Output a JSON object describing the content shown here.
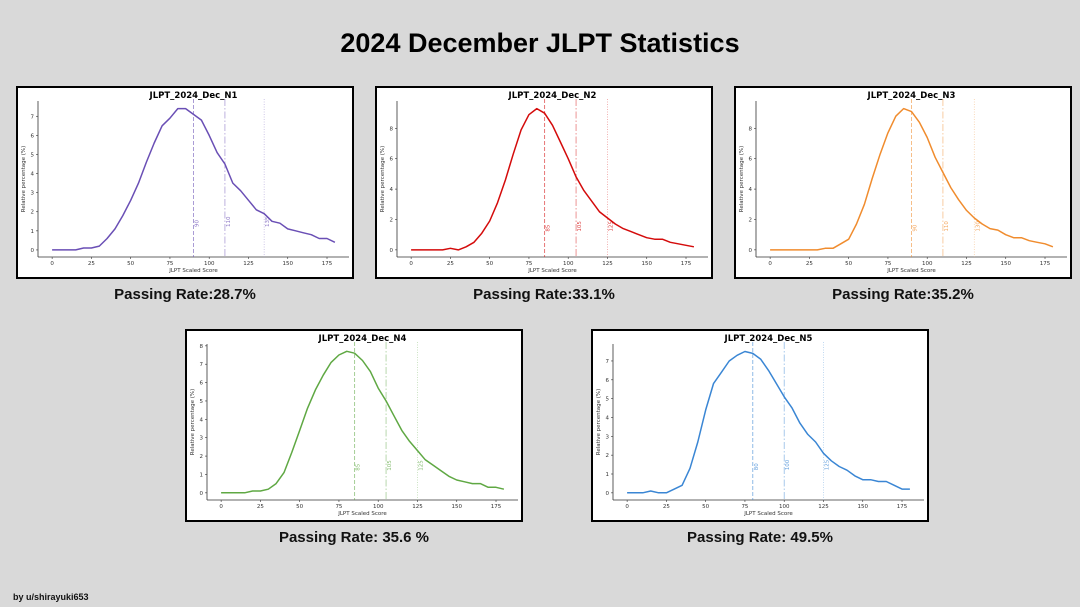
{
  "page_title": "2024 December JLPT Statistics",
  "credit": "by u/shirayuki653",
  "chart_data": [
    {
      "type": "line",
      "title": "JLPT_2024_Dec_N1",
      "xlabel": "JLPT Scaled Score",
      "ylabel": "Relative percentage (%)",
      "color": "#6a4fb5",
      "passing_rate": "Passing Rate:28.7%",
      "xlim": [
        -9,
        189
      ],
      "ylim": [
        -0.37,
        7.8
      ],
      "xticks": [
        0,
        25,
        50,
        75,
        100,
        125,
        150,
        175
      ],
      "yticks": [
        0,
        1,
        2,
        3,
        4,
        5,
        6,
        7
      ],
      "thresholds": [
        90,
        110,
        135
      ],
      "x": [
        0,
        5,
        10,
        15,
        20,
        25,
        30,
        35,
        40,
        45,
        50,
        55,
        60,
        65,
        70,
        75,
        80,
        85,
        90,
        95,
        100,
        105,
        110,
        115,
        120,
        125,
        130,
        135,
        140,
        145,
        150,
        155,
        160,
        165,
        170,
        175,
        180
      ],
      "y": [
        0,
        0,
        0,
        0,
        0.1,
        0.1,
        0.2,
        0.6,
        1.1,
        1.8,
        2.6,
        3.5,
        4.6,
        5.6,
        6.5,
        6.9,
        7.4,
        7.4,
        7.1,
        6.8,
        6.0,
        5.1,
        4.5,
        3.5,
        3.1,
        2.6,
        2.1,
        1.9,
        1.5,
        1.4,
        1.1,
        1.0,
        0.9,
        0.8,
        0.6,
        0.6,
        0.4
      ]
    },
    {
      "type": "line",
      "title": "JLPT_2024_Dec_N2",
      "xlabel": "JLPT Scaled Score",
      "ylabel": "Relative percentage (%)",
      "color": "#d40b0b",
      "passing_rate": "Passing Rate:33.1%",
      "xlim": [
        -9,
        189
      ],
      "ylim": [
        -0.47,
        9.8
      ],
      "xticks": [
        0,
        25,
        50,
        75,
        100,
        125,
        150,
        175
      ],
      "yticks": [
        0,
        2,
        4,
        6,
        8
      ],
      "thresholds": [
        85,
        105,
        125
      ],
      "x": [
        0,
        5,
        10,
        15,
        20,
        25,
        30,
        35,
        40,
        45,
        50,
        55,
        60,
        65,
        70,
        75,
        80,
        85,
        90,
        95,
        100,
        105,
        110,
        115,
        120,
        125,
        130,
        135,
        140,
        145,
        150,
        155,
        160,
        165,
        170,
        175,
        180
      ],
      "y": [
        0,
        0,
        0,
        0,
        0,
        0.1,
        0,
        0.2,
        0.5,
        1.1,
        1.9,
        3.1,
        4.6,
        6.3,
        7.9,
        8.9,
        9.3,
        9.0,
        8.2,
        7.1,
        6.0,
        4.8,
        3.9,
        3.2,
        2.5,
        2.1,
        1.7,
        1.4,
        1.2,
        1.0,
        0.8,
        0.7,
        0.7,
        0.5,
        0.4,
        0.3,
        0.2
      ]
    },
    {
      "type": "line",
      "title": "JLPT_2024_Dec_N3",
      "xlabel": "JLPT Scaled Score",
      "ylabel": "Relative percentage (%)",
      "color": "#f08c2e",
      "passing_rate": "Passing Rate:35.2%",
      "xlim": [
        -9,
        189
      ],
      "ylim": [
        -0.47,
        9.8
      ],
      "xticks": [
        0,
        25,
        50,
        75,
        100,
        125,
        150,
        175
      ],
      "yticks": [
        0,
        2,
        4,
        6,
        8
      ],
      "thresholds": [
        90,
        110,
        130
      ],
      "x": [
        0,
        5,
        10,
        15,
        20,
        25,
        30,
        35,
        40,
        45,
        50,
        55,
        60,
        65,
        70,
        75,
        80,
        85,
        90,
        95,
        100,
        105,
        110,
        115,
        120,
        125,
        130,
        135,
        140,
        145,
        150,
        155,
        160,
        165,
        170,
        175,
        180
      ],
      "y": [
        0,
        0,
        0,
        0,
        0,
        0,
        0,
        0.1,
        0.1,
        0.4,
        0.7,
        1.7,
        3.0,
        4.7,
        6.3,
        7.7,
        8.8,
        9.3,
        9.1,
        8.4,
        7.4,
        6.1,
        5.1,
        4.1,
        3.3,
        2.6,
        2.1,
        1.7,
        1.4,
        1.3,
        1.0,
        0.8,
        0.8,
        0.6,
        0.5,
        0.4,
        0.2
      ]
    },
    {
      "type": "line",
      "title": "JLPT_2024_Dec_N4",
      "xlabel": "JLPT Scaled Score",
      "ylabel": "Relative percentage (%)",
      "color": "#5fa843",
      "passing_rate": "Passing Rate: 35.6 %",
      "xlim": [
        -9,
        189
      ],
      "ylim": [
        -0.39,
        8.1
      ],
      "xticks": [
        0,
        25,
        50,
        75,
        100,
        125,
        150,
        175
      ],
      "yticks": [
        0,
        1,
        2,
        3,
        4,
        5,
        6,
        7,
        8
      ],
      "thresholds": [
        85,
        105,
        125
      ],
      "x": [
        0,
        5,
        10,
        15,
        20,
        25,
        30,
        35,
        40,
        45,
        50,
        55,
        60,
        65,
        70,
        75,
        80,
        85,
        90,
        95,
        100,
        105,
        110,
        115,
        120,
        125,
        130,
        135,
        140,
        145,
        150,
        155,
        160,
        165,
        170,
        175,
        180
      ],
      "y": [
        0,
        0,
        0,
        0,
        0.1,
        0.1,
        0.2,
        0.5,
        1.1,
        2.2,
        3.4,
        4.6,
        5.6,
        6.4,
        7.1,
        7.5,
        7.7,
        7.6,
        7.2,
        6.6,
        5.7,
        5.0,
        4.2,
        3.4,
        2.8,
        2.3,
        1.8,
        1.5,
        1.2,
        0.9,
        0.7,
        0.6,
        0.5,
        0.5,
        0.3,
        0.3,
        0.2
      ]
    },
    {
      "type": "line",
      "title": "JLPT_2024_Dec_N5",
      "xlabel": "JLPT Scaled Score",
      "ylabel": "Relative percentage (%)",
      "color": "#3a86d4",
      "passing_rate": "Passing Rate: 49.5%",
      "xlim": [
        -9,
        189
      ],
      "ylim": [
        -0.38,
        7.9
      ],
      "xticks": [
        0,
        25,
        50,
        75,
        100,
        125,
        150,
        175
      ],
      "yticks": [
        0,
        1,
        2,
        3,
        4,
        5,
        6,
        7
      ],
      "thresholds": [
        80,
        100,
        125
      ],
      "x": [
        0,
        5,
        10,
        15,
        20,
        25,
        30,
        35,
        40,
        45,
        50,
        55,
        60,
        65,
        70,
        75,
        80,
        85,
        90,
        95,
        100,
        105,
        110,
        115,
        120,
        125,
        130,
        135,
        140,
        145,
        150,
        155,
        160,
        165,
        170,
        175,
        180
      ],
      "y": [
        0,
        0,
        0,
        0.1,
        0,
        0,
        0.2,
        0.4,
        1.3,
        2.7,
        4.4,
        5.8,
        6.4,
        7.0,
        7.3,
        7.5,
        7.4,
        7.1,
        6.5,
        5.8,
        5.1,
        4.5,
        3.7,
        3.1,
        2.7,
        2.1,
        1.7,
        1.4,
        1.2,
        0.9,
        0.7,
        0.7,
        0.6,
        0.6,
        0.4,
        0.2,
        0.2
      ]
    }
  ]
}
